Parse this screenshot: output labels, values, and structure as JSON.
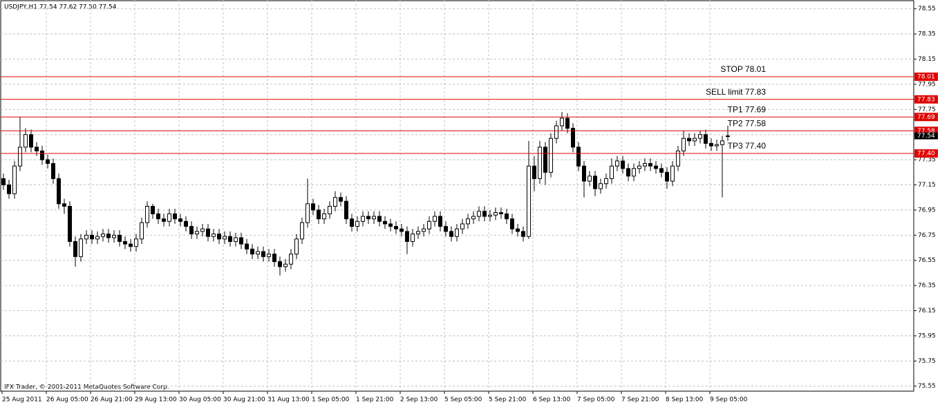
{
  "chart_data": {
    "type": "candlestick",
    "title": "USDJPY,H1  77.54 77.62 77.50 77.54",
    "footer": "IFX Trader, © 2001-2011 MetaQuotes Software Corp.",
    "x_labels": [
      "25 Aug 2011",
      "26 Aug 05:00",
      "26 Aug 21:00",
      "29 Aug 13:00",
      "30 Aug 05:00",
      "30 Aug 21:00",
      "31 Aug 13:00",
      "1 Sep 05:00",
      "1 Sep 21:00",
      "2 Sep 13:00",
      "5 Sep 05:00",
      "5 Sep 21:00",
      "6 Sep 13:00",
      "7 Sep 05:00",
      "7 Sep 21:00",
      "8 Sep 13:00",
      "9 Sep 05:00"
    ],
    "open": [
      77.2,
      77.15,
      77.08,
      77.3,
      77.45,
      77.55,
      77.45,
      77.42,
      77.35,
      77.32,
      77.2,
      77.0,
      76.98,
      76.7,
      76.58,
      76.72,
      76.75,
      76.72,
      76.74,
      76.76,
      76.73,
      76.75,
      76.7,
      76.68,
      76.66,
      76.72,
      76.85,
      76.98,
      76.92,
      76.88,
      76.86,
      76.92,
      76.88,
      76.86,
      76.82,
      76.76,
      76.78,
      76.8,
      76.74,
      76.76,
      76.72,
      76.74,
      76.7,
      76.73,
      76.68,
      76.64,
      76.6,
      76.62,
      76.58,
      76.6,
      76.54,
      76.5,
      76.52,
      76.6,
      76.72,
      76.85,
      77.0,
      76.95,
      76.88,
      76.92,
      76.98,
      77.05,
      77.02,
      76.88,
      76.82,
      76.86,
      76.9,
      76.88,
      76.9,
      76.86,
      76.84,
      76.82,
      76.8,
      76.78,
      76.7,
      76.76,
      76.78,
      76.8,
      76.86,
      76.9,
      76.82,
      76.78,
      76.74,
      76.8,
      76.84,
      76.88,
      76.9,
      76.94,
      76.9,
      76.91,
      76.93,
      76.92,
      76.88,
      76.8,
      76.78,
      76.74,
      77.3,
      77.2,
      77.45,
      77.25,
      77.52,
      77.62,
      77.68,
      77.6,
      77.45,
      77.3,
      77.18,
      77.22,
      77.12,
      77.16,
      77.2,
      77.3,
      77.34,
      77.28,
      77.22,
      77.28,
      77.3,
      77.32,
      77.3,
      77.28,
      77.25,
      77.18,
      77.3,
      77.42,
      77.52,
      77.5,
      77.52,
      77.55,
      77.48,
      77.46,
      77.47,
      77.54
    ],
    "high": [
      77.24,
      77.19,
      77.34,
      77.69,
      77.6,
      77.59,
      77.49,
      77.46,
      77.39,
      77.36,
      77.24,
      77.04,
      77.02,
      76.74,
      76.76,
      76.79,
      76.79,
      76.78,
      76.8,
      76.8,
      76.79,
      76.79,
      76.74,
      76.72,
      76.76,
      76.89,
      77.02,
      77.0,
      76.96,
      76.92,
      76.96,
      76.96,
      76.92,
      76.9,
      76.86,
      76.82,
      76.84,
      76.84,
      76.8,
      76.8,
      76.78,
      76.78,
      76.77,
      76.77,
      76.72,
      76.68,
      76.66,
      76.66,
      76.64,
      76.64,
      76.58,
      76.56,
      76.64,
      76.76,
      76.89,
      77.2,
      77.04,
      76.99,
      76.96,
      77.02,
      77.1,
      77.09,
      77.06,
      76.92,
      76.9,
      76.94,
      76.94,
      76.94,
      76.94,
      76.9,
      76.88,
      76.86,
      76.84,
      76.82,
      76.8,
      76.82,
      76.84,
      76.9,
      76.94,
      76.94,
      76.86,
      76.82,
      76.84,
      76.88,
      76.92,
      76.94,
      76.98,
      76.98,
      76.95,
      76.97,
      76.97,
      76.96,
      76.92,
      76.84,
      76.82,
      77.5,
      77.38,
      77.5,
      77.49,
      77.56,
      77.66,
      77.73,
      77.72,
      77.64,
      77.49,
      77.34,
      77.26,
      77.26,
      77.2,
      77.24,
      77.36,
      77.38,
      77.38,
      77.32,
      77.32,
      77.34,
      77.36,
      77.36,
      77.34,
      77.32,
      77.29,
      77.34,
      77.46,
      77.58,
      77.56,
      77.56,
      77.58,
      77.59,
      77.52,
      77.51,
      77.54,
      77.62
    ],
    "low": [
      77.11,
      77.04,
      77.04,
      77.26,
      77.41,
      77.41,
      77.38,
      77.31,
      77.28,
      77.16,
      76.96,
      76.92,
      76.66,
      76.5,
      76.54,
      76.68,
      76.68,
      76.68,
      76.7,
      76.69,
      76.69,
      76.66,
      76.64,
      76.62,
      76.62,
      76.68,
      76.81,
      76.88,
      76.84,
      76.82,
      76.82,
      76.84,
      76.82,
      76.78,
      76.72,
      76.72,
      76.74,
      76.7,
      76.7,
      76.68,
      76.68,
      76.66,
      76.66,
      76.64,
      76.6,
      76.56,
      76.56,
      76.54,
      76.54,
      76.5,
      76.43,
      76.46,
      76.48,
      76.56,
      76.68,
      76.81,
      76.91,
      76.84,
      76.84,
      76.88,
      76.94,
      76.98,
      76.84,
      76.78,
      76.78,
      76.82,
      76.84,
      76.84,
      76.82,
      76.8,
      76.78,
      76.76,
      76.74,
      76.6,
      76.66,
      76.72,
      76.74,
      76.76,
      76.82,
      76.78,
      76.74,
      76.7,
      76.7,
      76.76,
      76.8,
      76.84,
      76.86,
      76.86,
      76.86,
      76.87,
      76.88,
      76.84,
      76.76,
      76.74,
      76.7,
      76.72,
      77.1,
      77.16,
      77.15,
      77.21,
      77.48,
      77.58,
      77.56,
      77.41,
      77.26,
      77.05,
      77.14,
      77.06,
      77.08,
      77.12,
      77.16,
      77.26,
      77.24,
      77.18,
      77.18,
      77.24,
      77.26,
      77.26,
      77.24,
      77.21,
      77.12,
      77.14,
      77.26,
      77.38,
      77.46,
      77.46,
      77.48,
      77.44,
      77.42,
      77.42,
      77.05,
      77.5
    ],
    "close": [
      77.15,
      77.08,
      77.3,
      77.45,
      77.55,
      77.45,
      77.42,
      77.35,
      77.32,
      77.2,
      77.0,
      76.98,
      76.7,
      76.58,
      76.72,
      76.75,
      76.72,
      76.74,
      76.76,
      76.73,
      76.75,
      76.7,
      76.68,
      76.66,
      76.72,
      76.85,
      76.98,
      76.92,
      76.88,
      76.86,
      76.92,
      76.88,
      76.86,
      76.82,
      76.76,
      76.78,
      76.8,
      76.74,
      76.76,
      76.72,
      76.74,
      76.7,
      76.73,
      76.68,
      76.64,
      76.6,
      76.62,
      76.58,
      76.6,
      76.54,
      76.5,
      76.52,
      76.6,
      76.72,
      76.85,
      77.0,
      76.95,
      76.88,
      76.92,
      76.98,
      77.05,
      77.02,
      76.88,
      76.82,
      76.86,
      76.9,
      76.88,
      76.9,
      76.86,
      76.84,
      76.82,
      76.8,
      76.78,
      76.7,
      76.76,
      76.78,
      76.8,
      76.86,
      76.9,
      76.82,
      76.78,
      76.74,
      76.8,
      76.84,
      76.88,
      76.9,
      76.94,
      76.9,
      76.91,
      76.93,
      76.92,
      76.88,
      76.8,
      76.78,
      76.74,
      77.3,
      77.2,
      77.45,
      77.25,
      77.52,
      77.62,
      77.68,
      77.6,
      77.45,
      77.3,
      77.18,
      77.22,
      77.12,
      77.16,
      77.2,
      77.3,
      77.34,
      77.28,
      77.22,
      77.28,
      77.3,
      77.32,
      77.3,
      77.28,
      77.25,
      77.18,
      77.3,
      77.42,
      77.52,
      77.5,
      77.52,
      77.55,
      77.48,
      77.46,
      77.47,
      77.5,
      77.54
    ],
    "ylim": [
      75.51,
      78.62
    ],
    "yticks": [
      78.55,
      78.35,
      78.15,
      77.95,
      77.75,
      77.55,
      77.35,
      77.15,
      76.95,
      76.75,
      76.55,
      76.35,
      76.15,
      75.95,
      75.75,
      75.55
    ],
    "grid": true,
    "levels": [
      {
        "label": "STOP 78.01",
        "value": 78.01,
        "value_label": "78.01"
      },
      {
        "label": "SELL limit 77.83",
        "value": 77.83,
        "value_label": "77.83"
      },
      {
        "label": "TP1 77.69",
        "value": 77.69,
        "value_label": "77.69"
      },
      {
        "label": "TP2 77.58",
        "value": 77.58,
        "value_label": "77.58"
      },
      {
        "label": "TP3 77.40",
        "value": 77.4,
        "value_label": "77.40"
      }
    ],
    "level_color": "#e00000",
    "last_price": 77.54
  }
}
